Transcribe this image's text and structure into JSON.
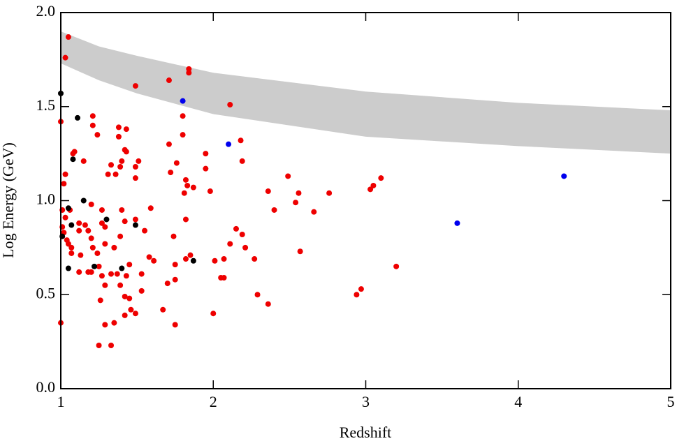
{
  "chart_data": {
    "type": "scatter",
    "x_label": "Redshift",
    "y_label": "Log Energy (GeV)",
    "xlim": [
      1,
      5
    ],
    "ylim": [
      0,
      2
    ],
    "xticks": [
      1,
      2,
      3,
      4,
      5
    ],
    "yticks": [
      {
        "value": 0,
        "label": "0.0"
      },
      0.5,
      {
        "value": 1,
        "label": "1.0"
      },
      1.5,
      {
        "value": 2,
        "label": "2.0"
      }
    ],
    "band": {
      "color": "#cccccc",
      "x": [
        1,
        1.25,
        1.5,
        2,
        3,
        4,
        5
      ],
      "lower": [
        1.73,
        1.64,
        1.57,
        1.46,
        1.34,
        1.29,
        1.25
      ],
      "upper": [
        1.9,
        1.82,
        1.77,
        1.68,
        1.58,
        1.52,
        1.48
      ]
    },
    "series": [
      {
        "color": "#ee0000",
        "x": [
          1.05,
          1.03,
          1.49,
          1.71,
          1.84,
          1.84,
          2.11,
          1.0,
          1.08,
          1.09,
          1.03,
          1.02,
          1.15,
          1.21,
          1.21,
          1.24,
          1.38,
          1.43,
          1.38,
          1.42,
          1.43,
          1.33,
          1.4,
          1.39,
          1.49,
          1.51,
          1.49,
          1.31,
          1.36,
          1.8,
          1.8,
          1.71,
          1.76,
          1.72,
          1.82,
          1.83,
          1.87,
          1.81,
          1.59,
          1.95,
          1.95,
          1.98,
          2.18,
          2.19,
          2.49,
          2.36,
          2.56,
          2.54,
          2.4,
          2.76,
          2.66,
          3.1,
          3.05,
          3.03,
          3.2,
          2.97,
          2.94,
          1.01,
          1.03,
          1.06,
          1.01,
          1.02,
          1.04,
          1.05,
          1.07,
          1.07,
          1.12,
          1.12,
          1.16,
          1.18,
          1.2,
          1.21,
          1.2,
          1.27,
          1.27,
          1.29,
          1.24,
          1.29,
          1.35,
          1.4,
          1.42,
          1.39,
          1.25,
          1.2,
          1.18,
          1.12,
          1.33,
          1.37,
          1.43,
          1.39,
          1.29,
          1.27,
          1.45,
          1.49,
          1.55,
          1.61,
          1.53,
          1.58,
          1.53,
          1.42,
          1.45,
          1.26,
          1.29,
          1.35,
          1.42,
          1.46,
          1.49,
          1.67,
          1.75,
          1.25,
          1.33,
          1.0,
          1.74,
          1.75,
          1.7,
          1.75,
          1.82,
          1.82,
          1.85,
          2.01,
          2.0,
          2.07,
          2.05,
          2.07,
          2.11,
          2.15,
          2.19,
          2.21,
          2.27,
          2.29,
          2.36,
          2.57,
          1.13
        ],
        "values": [
          1.87,
          1.76,
          1.61,
          1.64,
          1.68,
          1.7,
          1.51,
          1.42,
          1.25,
          1.26,
          1.14,
          1.09,
          1.21,
          1.45,
          1.4,
          1.35,
          1.39,
          1.38,
          1.34,
          1.27,
          1.26,
          1.19,
          1.21,
          1.18,
          1.18,
          1.21,
          1.12,
          1.14,
          1.14,
          1.45,
          1.35,
          1.3,
          1.2,
          1.15,
          1.11,
          1.08,
          1.07,
          1.04,
          0.96,
          1.25,
          1.17,
          1.05,
          1.32,
          1.21,
          1.13,
          1.05,
          1.04,
          0.99,
          0.95,
          1.04,
          0.94,
          1.12,
          1.08,
          1.06,
          0.65,
          0.53,
          0.5,
          0.95,
          0.91,
          0.95,
          0.86,
          0.83,
          0.79,
          0.77,
          0.75,
          0.72,
          0.88,
          0.84,
          0.87,
          0.84,
          0.8,
          0.75,
          0.98,
          0.95,
          0.88,
          0.86,
          0.72,
          0.77,
          0.75,
          0.95,
          0.89,
          0.81,
          0.65,
          0.62,
          0.62,
          0.62,
          0.61,
          0.61,
          0.6,
          0.55,
          0.55,
          0.6,
          0.66,
          0.9,
          0.84,
          0.68,
          0.61,
          0.7,
          0.52,
          0.49,
          0.48,
          0.47,
          0.34,
          0.35,
          0.39,
          0.42,
          0.4,
          0.42,
          0.34,
          0.23,
          0.23,
          0.35,
          0.81,
          0.66,
          0.56,
          0.58,
          0.9,
          0.69,
          0.71,
          0.68,
          0.4,
          0.69,
          0.59,
          0.59,
          0.77,
          0.85,
          0.82,
          0.75,
          0.69,
          0.5,
          0.45,
          0.73,
          0.71
        ]
      },
      {
        "color": "#000000",
        "x": [
          1.0,
          1.11,
          1.08,
          1.15,
          1.05,
          1.07,
          1.3,
          1.49,
          1.01,
          1.05,
          1.22,
          1.4,
          1.87
        ],
        "values": [
          1.57,
          1.44,
          1.22,
          1.0,
          0.96,
          0.87,
          0.9,
          0.87,
          0.81,
          0.64,
          0.65,
          0.64,
          0.68
        ]
      },
      {
        "color": "#0000ee",
        "x": [
          1.8,
          2.1,
          3.6,
          4.3
        ],
        "values": [
          1.53,
          1.3,
          0.88,
          1.13
        ]
      }
    ]
  }
}
